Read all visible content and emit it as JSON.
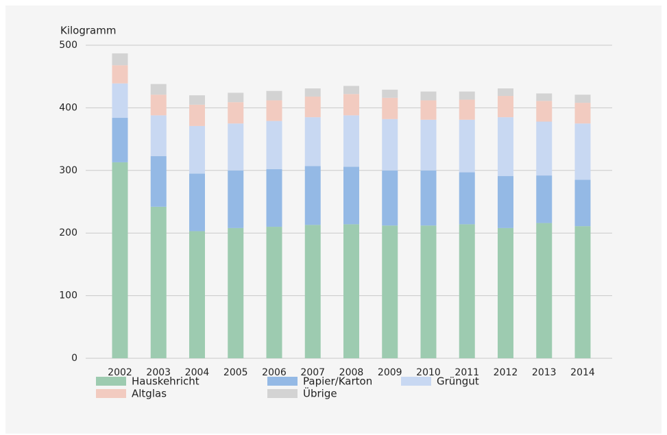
{
  "chart_data": {
    "type": "stacked_bar",
    "y_label": "Kilogramm",
    "categories": [
      "2002",
      "2003",
      "2004",
      "2005",
      "2006",
      "2007",
      "2008",
      "2009",
      "2010",
      "2011",
      "2012",
      "2013",
      "2014"
    ],
    "series": [
      {
        "name": "Hauskehricht",
        "color": "#9dcbb0",
        "values": [
          313,
          242,
          203,
          208,
          210,
          213,
          214,
          212,
          212,
          214,
          208,
          216,
          211
        ]
      },
      {
        "name": "Papier/Karton",
        "color": "#94b9e5",
        "values": [
          71,
          81,
          92,
          92,
          92,
          94,
          92,
          88,
          88,
          83,
          83,
          76,
          74
        ]
      },
      {
        "name": "Grüngut",
        "color": "#c8d8f2",
        "values": [
          55,
          65,
          76,
          75,
          77,
          78,
          82,
          82,
          81,
          84,
          94,
          86,
          90
        ]
      },
      {
        "name": "Altglas",
        "color": "#f2cbc0",
        "values": [
          29,
          33,
          34,
          34,
          33,
          33,
          34,
          34,
          31,
          32,
          34,
          33,
          33
        ]
      },
      {
        "name": "Übrige",
        "color": "#d3d3d3",
        "values": [
          19,
          17,
          15,
          15,
          15,
          13,
          13,
          13,
          14,
          13,
          12,
          12,
          13
        ]
      }
    ],
    "ylim": [
      0,
      500
    ],
    "yticks": [
      0,
      100,
      200,
      300,
      400,
      500
    ],
    "grid": true
  }
}
